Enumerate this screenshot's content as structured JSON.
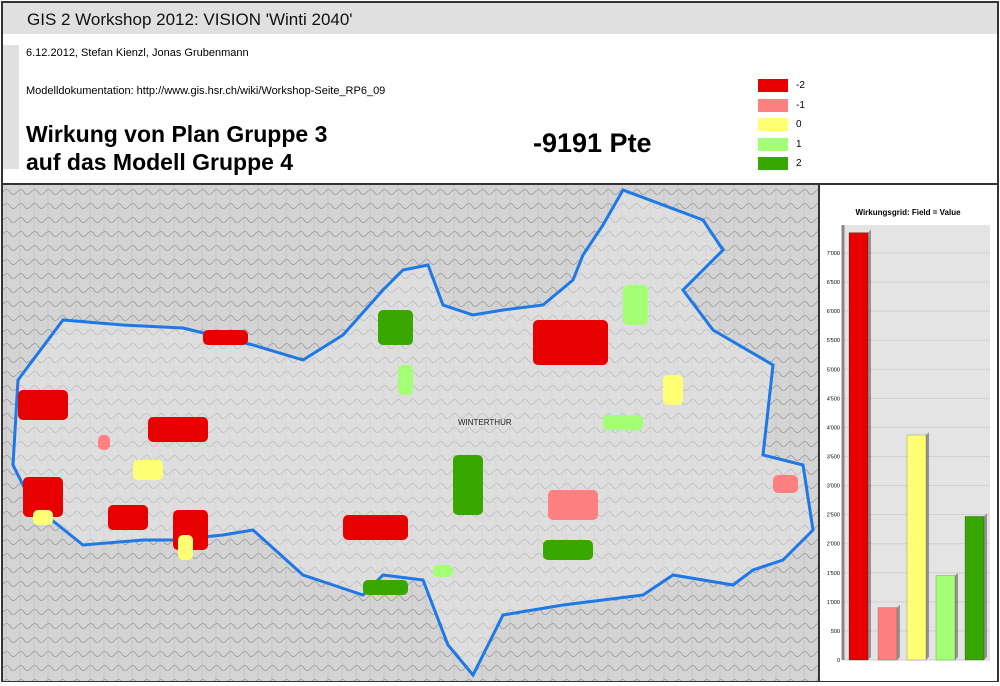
{
  "header": {
    "title": "GIS 2 Workshop 2012: VISION 'Winti 2040'"
  },
  "info": {
    "authors": "6.12.2012, Stefan Kienzl, Jonas Grubenmann",
    "documentation": "Modelldokumentation: http://www.gis.hsr.ch/wiki/Workshop-Seite_RP6_09",
    "heading_line1": "Wirkung von Plan Gruppe 3",
    "heading_line2": "auf das Modell Gruppe 4",
    "score": "-9191 Pte"
  },
  "legend": [
    {
      "label": "-2",
      "color": "#e60000"
    },
    {
      "label": "-1",
      "color": "#ff8080"
    },
    {
      "label": "0",
      "color": "#ffff73"
    },
    {
      "label": "1",
      "color": "#a3ff73"
    },
    {
      "label": "2",
      "color": "#38a800"
    }
  ],
  "map": {
    "place_label": "WINTERTHUR",
    "boundary_color": "#1e78e6"
  },
  "chart_data": {
    "type": "bar",
    "title": "Wirkungsgrid: Field = Value",
    "categories": [
      "-2",
      "-1",
      "0",
      "1",
      "2"
    ],
    "values": [
      7350,
      900,
      3870,
      1450,
      2470
    ],
    "colors": [
      "#e60000",
      "#ff8080",
      "#ffff73",
      "#a3ff73",
      "#38a800"
    ],
    "ylim": [
      0,
      7400
    ],
    "yticks": [
      "0",
      "500",
      "1'000",
      "1'500",
      "2'000",
      "2'500",
      "3'000",
      "3'500",
      "4'000",
      "4'500",
      "5'000",
      "5'500",
      "6'000",
      "6'500",
      "7'000"
    ],
    "grid": true
  }
}
